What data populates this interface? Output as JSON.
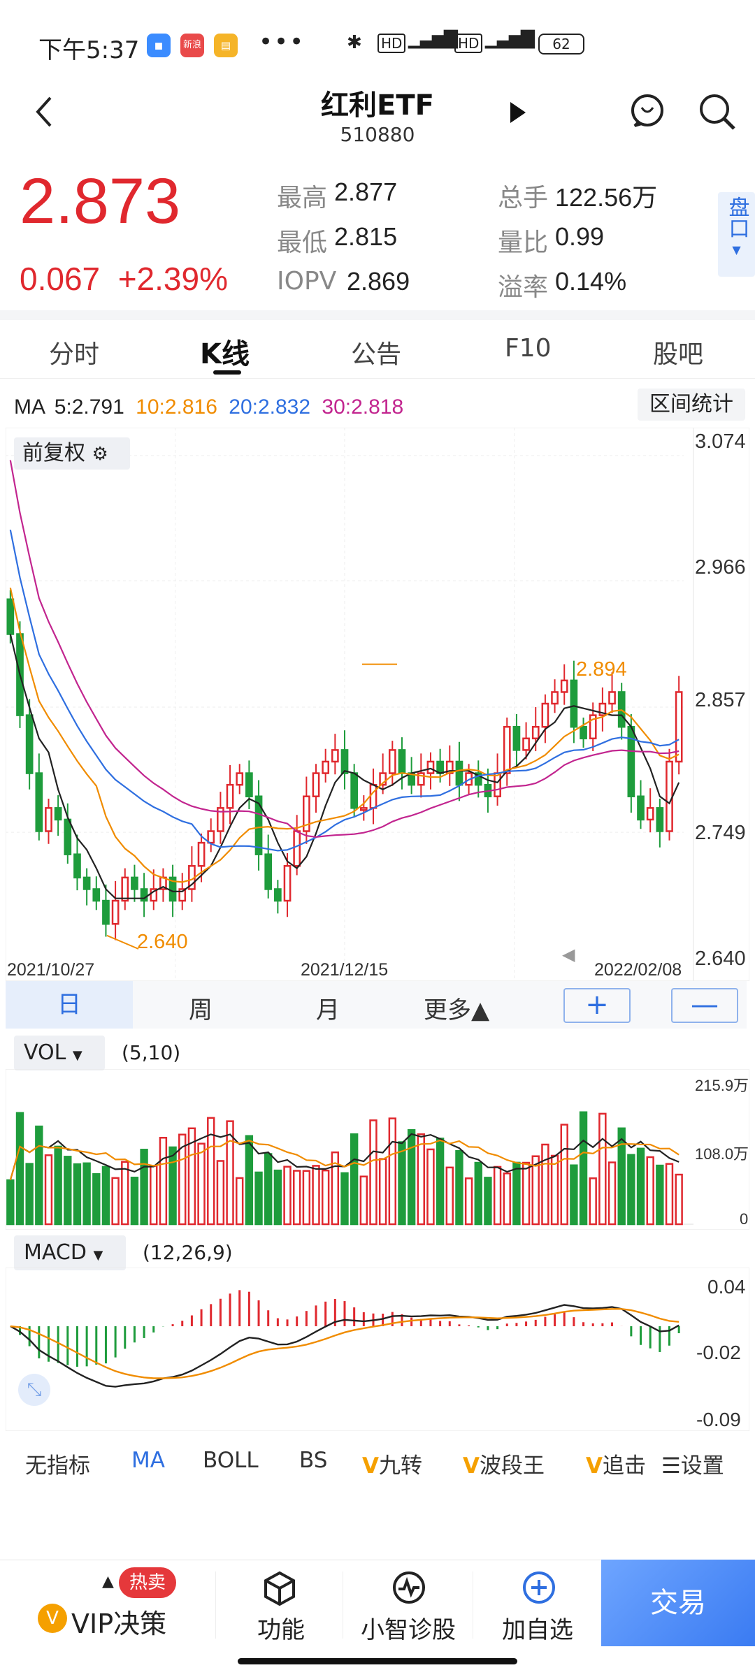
{
  "status": {
    "time": "下午5:37",
    "battery": "62",
    "app3_label": "新浪"
  },
  "header": {
    "title": "红利ETF",
    "code": "510880"
  },
  "quote": {
    "price": "2.873",
    "change": "0.067",
    "change_pct": "+2.39%",
    "high_label": "最高",
    "high": "2.877",
    "low_label": "最低",
    "low": "2.815",
    "iopv_label": "IOPV",
    "iopv": "2.869",
    "vol_label": "总手",
    "vol": "122.56万",
    "ratio_label": "量比",
    "ratio": "0.99",
    "premium_label": "溢率",
    "premium": "0.14%",
    "pankou": "盘口"
  },
  "tabs": [
    "分时",
    "K线",
    "公告",
    "F10",
    "股吧"
  ],
  "ma": {
    "label": "MA",
    "ma5": "5:2.791",
    "ma10": "10:2.816",
    "ma20": "20:2.832",
    "ma30": "30:2.818"
  },
  "range_stats": "区间统计",
  "fuquan": "前复权",
  "kline": {
    "y_labels": [
      "3.074",
      "2.966",
      "2.857",
      "2.749",
      "2.640"
    ],
    "x_labels": [
      "2021/10/27",
      "2021/12/15",
      "2022/02/08"
    ],
    "max_label": "2.894",
    "min_label": "2.640"
  },
  "periods": [
    "日",
    "周",
    "月",
    "更多▲"
  ],
  "zoom": {
    "in": "+",
    "out": "—"
  },
  "vol_panel": {
    "tag": "VOL",
    "params": "(5,10)",
    "y_labels": [
      "215.9万",
      "108.0万",
      "0"
    ]
  },
  "macd_panel": {
    "tag": "MACD",
    "params": "(12,26,9)",
    "y_labels": [
      "0.04",
      "-0.02",
      "-0.09"
    ]
  },
  "indicators": [
    "无指标",
    "MA",
    "BOLL",
    "BS",
    "九转",
    "波段王",
    "追击",
    "设置"
  ],
  "bottom": {
    "vip_badge": "热卖",
    "vip": "VIP决策",
    "func": "功能",
    "diag": "小智诊股",
    "add": "加自选",
    "trade": "交易"
  },
  "colors": {
    "up": "#e0282e",
    "down": "#1e9c3c",
    "ma5": "#222222",
    "ma10": "#f08c00",
    "ma20": "#2f6fe0",
    "ma30": "#c2258f",
    "accent": "#2f6fe0"
  },
  "chart_data": {
    "type": "candlestick",
    "x_range": [
      "2021/10/27",
      "2022/02/08"
    ],
    "ylim": [
      2.64,
      3.074
    ],
    "extremes": {
      "high": 2.894,
      "low": 2.64
    },
    "closes_approx": [
      2.92,
      2.85,
      2.8,
      2.75,
      2.77,
      2.76,
      2.73,
      2.71,
      2.7,
      2.69,
      2.67,
      2.69,
      2.71,
      2.7,
      2.69,
      2.7,
      2.71,
      2.69,
      2.7,
      2.72,
      2.74,
      2.75,
      2.77,
      2.79,
      2.8,
      2.78,
      2.73,
      2.7,
      2.69,
      2.72,
      2.75,
      2.78,
      2.8,
      2.81,
      2.82,
      2.8,
      2.77,
      2.77,
      2.79,
      2.8,
      2.82,
      2.8,
      2.79,
      2.8,
      2.81,
      2.8,
      2.81,
      2.79,
      2.8,
      2.79,
      2.78,
      2.8,
      2.84,
      2.82,
      2.83,
      2.84,
      2.86,
      2.87,
      2.88,
      2.84,
      2.83,
      2.85,
      2.86,
      2.87,
      2.84,
      2.78,
      2.76,
      2.77,
      2.75,
      2.81,
      2.87
    ]
  }
}
